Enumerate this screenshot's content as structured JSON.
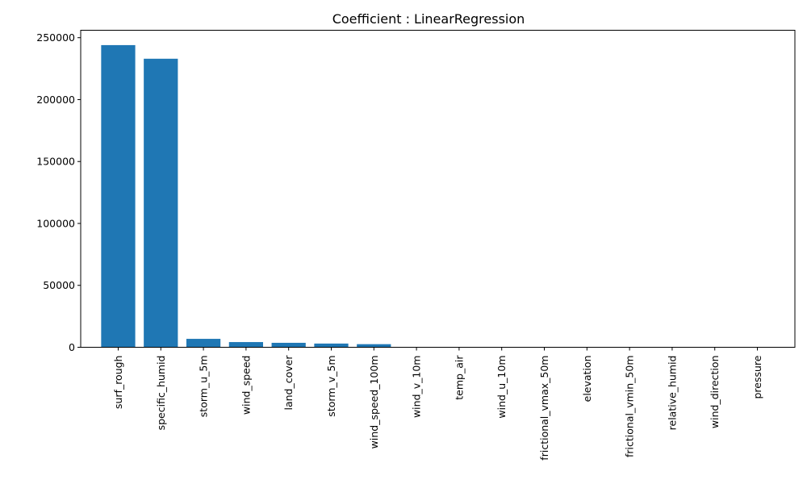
{
  "chart_data": {
    "type": "bar",
    "title": "Coefficient : LinearRegression",
    "xlabel": "",
    "ylabel": "",
    "categories": [
      "surf_rough",
      "specific_humid",
      "storm_u_5m",
      "wind_speed",
      "land_cover",
      "storm_v_5m",
      "wind_speed_100m",
      "wind_v_10m",
      "temp_air",
      "wind_u_10m",
      "frictional_vmax_50m",
      "elevation",
      "frictional_vmin_50m",
      "relative_humid",
      "wind_direction",
      "pressure"
    ],
    "values": [
      244000,
      233000,
      6800,
      4200,
      3600,
      3000,
      2500,
      150,
      100,
      80,
      60,
      40,
      30,
      20,
      10,
      5
    ],
    "ylim": [
      0,
      256000
    ],
    "yticks": [
      0,
      50000,
      100000,
      150000,
      200000,
      250000
    ],
    "ytick_labels": [
      "0",
      "50000",
      "100000",
      "150000",
      "200000",
      "250000"
    ],
    "bar_color": "#1f77b4",
    "grid": false,
    "legend": "none"
  }
}
